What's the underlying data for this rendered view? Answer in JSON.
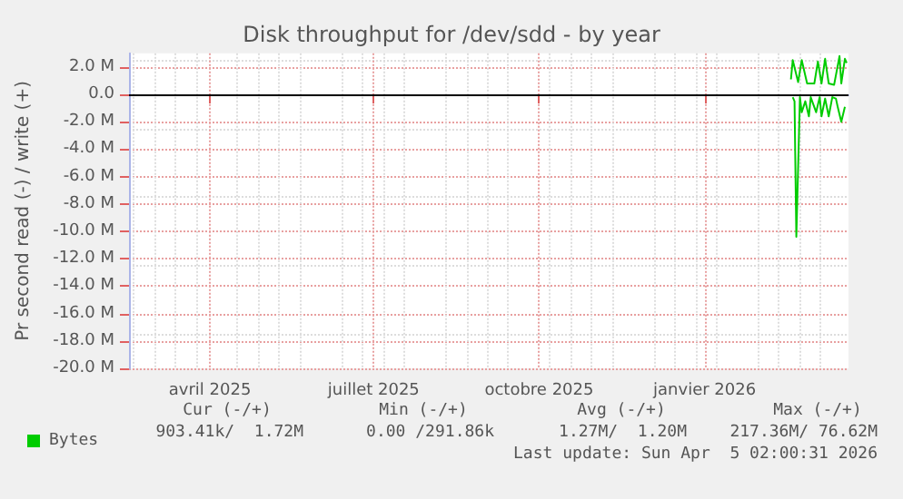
{
  "chart_data": {
    "type": "line",
    "title": "Disk throughput for /dev/sdd - by year",
    "ylabel": "Pr second read (-) / write (+)",
    "xlim": [
      "2025-03-01",
      "2026-04-05"
    ],
    "xticks": [
      {
        "value": "2025-04-15",
        "label": "avril 2025"
      },
      {
        "value": "2025-07-15",
        "label": "juillet 2025"
      },
      {
        "value": "2025-10-15",
        "label": "octobre 2025"
      },
      {
        "value": "2026-01-15",
        "label": "janvier 2026"
      }
    ],
    "ylim": [
      -20,
      3
    ],
    "yticks": [
      {
        "value": 2,
        "label": "2.0 M"
      },
      {
        "value": 0,
        "label": "0.0"
      },
      {
        "value": -2,
        "label": "-2.0 M"
      },
      {
        "value": -4,
        "label": "-4.0 M"
      },
      {
        "value": -6,
        "label": "-6.0 M"
      },
      {
        "value": -8,
        "label": "-8.0 M"
      },
      {
        "value": -10,
        "label": "-10.0 M"
      },
      {
        "value": -12,
        "label": "-12.0 M"
      },
      {
        "value": -14,
        "label": "-14.0 M"
      },
      {
        "value": -16,
        "label": "-16.0 M"
      },
      {
        "value": -18,
        "label": "-18.0 M"
      },
      {
        "value": -20,
        "label": "-20.0 M"
      }
    ],
    "grid": true,
    "legend": "bottom left",
    "ref_lines": [
      {
        "axis": "y",
        "value": 0,
        "color": "#000000"
      }
    ],
    "series": [
      {
        "name": "Bytes",
        "color": "#00cc00",
        "x": [
          "2026-03-04",
          "2026-03-05",
          "2026-03-08",
          "2026-03-10",
          "2026-03-13",
          "2026-03-17",
          "2026-03-19",
          "2026-03-21",
          "2026-03-23",
          "2026-03-25",
          "2026-03-28",
          "2026-03-31",
          "2026-04-01",
          "2026-04-03",
          "2026-04-04"
        ],
        "values": [
          1.1,
          2.5,
          0.9,
          2.5,
          0.8,
          0.8,
          2.4,
          0.8,
          2.6,
          0.8,
          0.7,
          2.8,
          0.8,
          2.6,
          2.3
        ]
      },
      {
        "color": "#00cc00",
        "x": [
          "2026-03-05",
          "2026-03-06",
          "2026-03-07",
          "2026-03-09",
          "2026-03-10",
          "2026-03-12",
          "2026-03-14",
          "2026-03-15",
          "2026-03-18",
          "2026-03-20",
          "2026-03-21",
          "2026-03-23",
          "2026-03-25",
          "2026-03-27",
          "2026-03-29",
          "2026-03-30",
          "2026-04-01",
          "2026-04-03"
        ],
        "values": [
          -0.2,
          -0.5,
          -10.4,
          -0.2,
          -1.3,
          -0.5,
          -1.6,
          -0.2,
          -1.3,
          -0.2,
          -1.6,
          -0.3,
          -1.6,
          -0.2,
          -0.3,
          -0.9,
          -2.0,
          -0.9
        ]
      }
    ],
    "annotations": [
      "Cur (-/+)",
      "Min (-/+)",
      "Avg (-/+)",
      "Max (-/+)",
      "903.41k/  1.72M",
      "0.00 /291.86k",
      "1.27M/  1.20M",
      "217.36M/ 76.62M",
      "Last update: Sun Apr  5 02:00:31 2026"
    ]
  }
}
